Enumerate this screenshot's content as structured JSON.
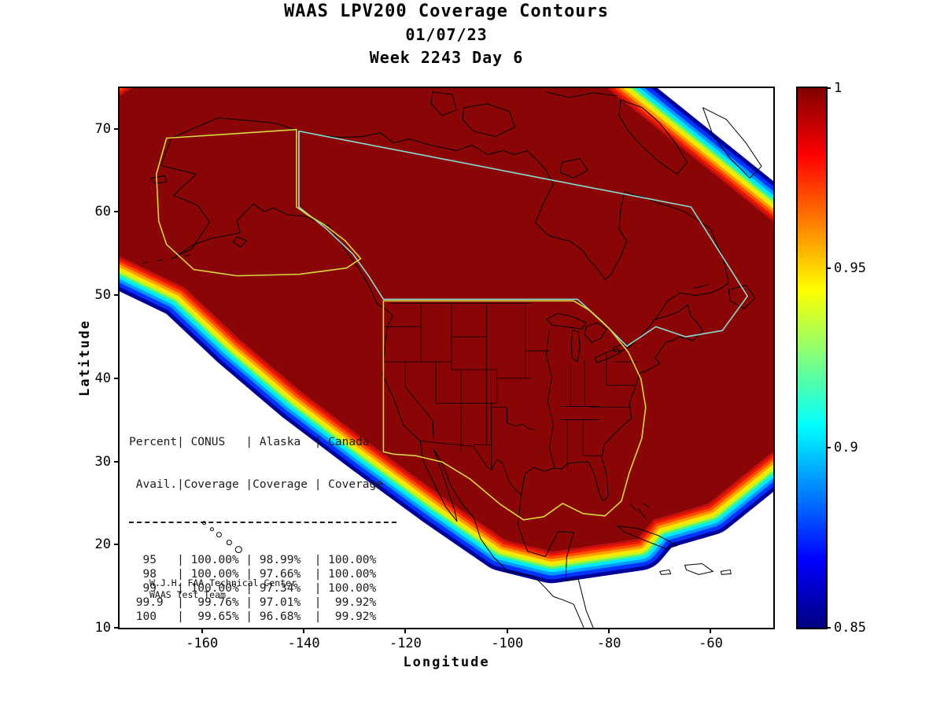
{
  "title": {
    "line1": "WAAS LPV200 Coverage Contours",
    "line2": "01/07/23",
    "line3": "Week 2243 Day 6"
  },
  "axes": {
    "xlabel": "Longitude",
    "ylabel": "Latitude",
    "xlim": [
      -176.2,
      -47.7
    ],
    "ylim": [
      10,
      74.9
    ],
    "xticks": [
      "-160",
      "-140",
      "-120",
      "-100",
      "-80",
      "-60"
    ],
    "yticks": [
      "70",
      "60",
      "50",
      "40",
      "30",
      "20",
      "10"
    ]
  },
  "colorbar": {
    "min": 0.85,
    "max": 1,
    "ticks": [
      "1",
      "0.95",
      "0.9",
      "0.85"
    ],
    "colormap": "jet"
  },
  "table": {
    "header_line1": "Percent| CONUS   | Alaska  | Canada",
    "header_line2": " Avail.|Coverage |Coverage | Coverage",
    "rows": [
      "  95   | 100.00% | 98.99%  | 100.00%",
      "  98   | 100.00% | 97.66%  | 100.00%",
      "  99   | 100.00% | 97.34%  | 100.00%",
      " 99.9  |  99.76% | 97.01%  |  99.92%",
      " 100   |  99.65% | 96.68%  |  99.92%"
    ]
  },
  "credit": {
    "line1": "W.J.H. FAA Technical Center",
    "line2": "WAAS Test Team"
  },
  "colors": {
    "coverage_max_fill": "#8a0606",
    "alaska_conus_boundary": "#d8d83f",
    "canada_boundary": "#8adbd3",
    "coastline": "#000000",
    "background": "#ffffff"
  },
  "chart_data": {
    "type": "contour",
    "title": "WAAS LPV200 Coverage Contours",
    "date": "01/07/23",
    "gps_week": 2243,
    "gps_day": 6,
    "xlabel": "Longitude",
    "ylabel": "Latitude",
    "xlim": [
      -176,
      -48
    ],
    "ylim": [
      10,
      75
    ],
    "xticks": [
      -160,
      -140,
      -120,
      -100,
      -80,
      -60
    ],
    "yticks": [
      10,
      20,
      30,
      40,
      50,
      60,
      70
    ],
    "colorbar": {
      "min": 0.85,
      "max": 1,
      "ticks": [
        0.85,
        0.9,
        0.95,
        1
      ],
      "colormap": "jet",
      "position": "right"
    },
    "description": "Filled contour map of WAAS LPV200 availability over North America. Interior covering CONUS, Alaska and Canada is at the maximum level 1 (dark red); a rainbow fringe of contour bands descends from 1 to 0.85 (dark blue) at the coverage edge over the oceans, Mexico and the Arctic. Service-volume outlines for Alaska/CONUS (yellow) and Canada (teal) plus black coastlines and state borders are overlaid.",
    "availability_table": {
      "columns": [
        "Percent Avail.",
        "CONUS Coverage",
        "Alaska Coverage",
        "Canada Coverage"
      ],
      "rows": [
        {
          "percent_avail": "95",
          "conus": "100.00%",
          "alaska": "98.99%",
          "canada": "100.00%"
        },
        {
          "percent_avail": "98",
          "conus": "100.00%",
          "alaska": "97.66%",
          "canada": "100.00%"
        },
        {
          "percent_avail": "99",
          "conus": "100.00%",
          "alaska": "97.34%",
          "canada": "100.00%"
        },
        {
          "percent_avail": "99.9",
          "conus": "99.76%",
          "alaska": "97.01%",
          "canada": "99.92%"
        },
        {
          "percent_avail": "100",
          "conus": "99.65%",
          "alaska": "96.68%",
          "canada": "99.92%"
        }
      ]
    }
  }
}
